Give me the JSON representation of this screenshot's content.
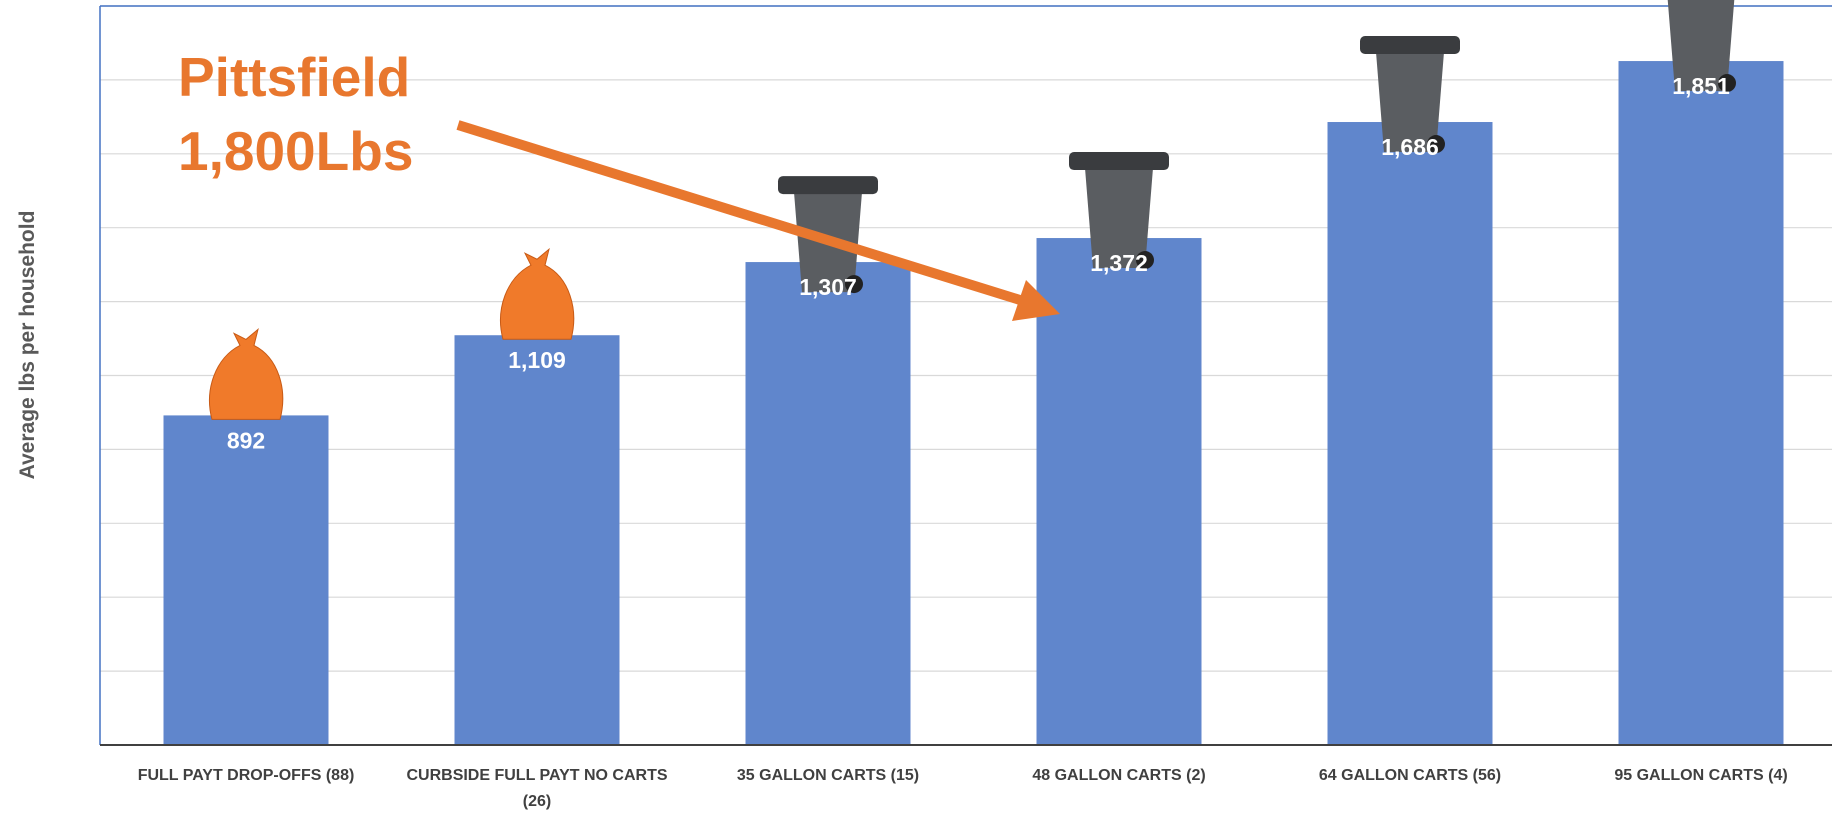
{
  "chart_data": {
    "type": "bar",
    "y_label": "Average lbs per household",
    "categories": [
      "FULL PAYT DROP-OFFS (88)",
      "CURBSIDE FULL PAYT NO CARTS (26)",
      "35 GALLON CARTS (15)",
      "48 GALLON CARTS (2)",
      "64 GALLON CARTS (56)",
      "95 GALLON CARTS (4)"
    ],
    "values": [
      892,
      1109,
      1307,
      1372,
      1686,
      1851
    ],
    "value_labels": [
      "892",
      "1,109",
      "1,307",
      "1,372",
      "1,686",
      "1,851"
    ],
    "color": "#6086cc",
    "ylim": [
      0,
      2000
    ],
    "yticks": [
      0,
      200,
      400,
      600,
      800,
      1000,
      1200,
      1400,
      1600,
      1800,
      2000
    ],
    "grid": true,
    "annotation": [
      "Pittsfield",
      "1,800Lbs"
    ],
    "annotation_color": "#e8772e"
  }
}
